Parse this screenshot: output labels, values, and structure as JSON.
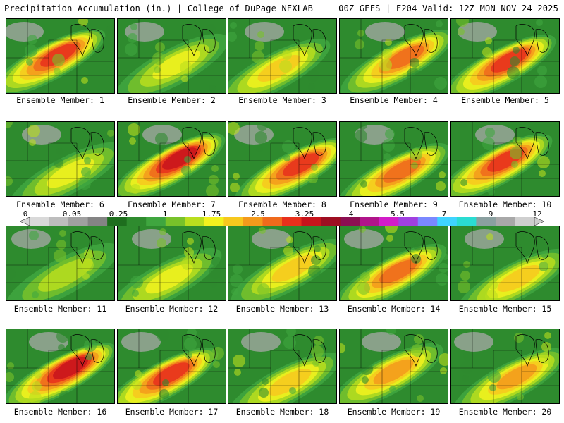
{
  "header": {
    "left_title": "Precipitation Accumulation (in.) | College of DuPage NEXLAB",
    "right_title": "00Z GEFS | F204 Valid: 12Z MON NOV 24 2025"
  },
  "members": [
    {
      "label": "Ensemble Member: 1",
      "style": 2.6
    },
    {
      "label": "Ensemble Member: 2",
      "style": 1.2
    },
    {
      "label": "Ensemble Member: 3",
      "style": 1.6
    },
    {
      "label": "Ensemble Member: 4",
      "style": 2.4
    },
    {
      "label": "Ensemble Member: 5",
      "style": 2.8
    },
    {
      "label": "Ensemble Member: 6",
      "style": 1.4
    },
    {
      "label": "Ensemble Member: 7",
      "style": 3.0
    },
    {
      "label": "Ensemble Member: 8",
      "style": 2.7
    },
    {
      "label": "Ensemble Member: 9",
      "style": 2.2
    },
    {
      "label": "Ensemble Member: 10",
      "style": 2.5
    },
    {
      "label": "Ensemble Member: 11",
      "style": 1.1
    },
    {
      "label": "Ensemble Member: 12",
      "style": 1.3
    },
    {
      "label": "Ensemble Member: 13",
      "style": 1.5
    },
    {
      "label": "Ensemble Member: 14",
      "style": 2.3
    },
    {
      "label": "Ensemble Member: 15",
      "style": 1.7
    },
    {
      "label": "Ensemble Member: 16",
      "style": 2.9
    },
    {
      "label": "Ensemble Member: 17",
      "style": 2.6
    },
    {
      "label": "Ensemble Member: 18",
      "style": 1.8
    },
    {
      "label": "Ensemble Member: 19",
      "style": 1.9
    },
    {
      "label": "Ensemble Member: 20",
      "style": 2.0
    }
  ],
  "colorbar": {
    "tick_labels": [
      "0",
      "0.05",
      "0.25",
      "1",
      "1.75",
      "2.5",
      "3.25",
      "4",
      "5.5",
      "7",
      "9",
      "12"
    ],
    "colors": [
      "#d9d9d9",
      "#bdbdbd",
      "#a0a0a0",
      "#848484",
      "#1e6e1e",
      "#2e8b2e",
      "#3fa63f",
      "#78c22a",
      "#b9de1e",
      "#f2f21e",
      "#f7c81e",
      "#f39a1c",
      "#ef6a1c",
      "#e8301c",
      "#c8141c",
      "#9e0e22",
      "#8c0f52",
      "#b0148a",
      "#d21cc8",
      "#a040e0",
      "#7a88ff",
      "#3fd4ff",
      "#2adcd2",
      "#8aa0a0",
      "#a8a8a8",
      "#cfcfcf"
    ]
  }
}
